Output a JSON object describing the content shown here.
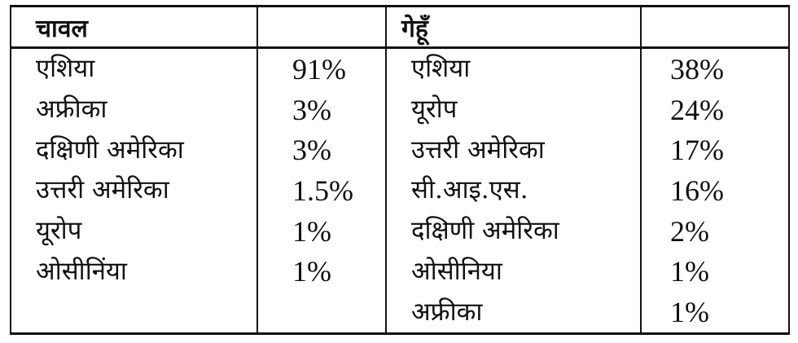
{
  "headers": [
    "चावल",
    "",
    "गेहूँ",
    ""
  ],
  "rows": [
    {
      "rice_region": "एशिया",
      "rice_value": "91%",
      "wheat_region": "एशिया",
      "wheat_value": "38%"
    },
    {
      "rice_region": "अफ्रीका",
      "rice_value": "3%",
      "wheat_region": "यूरोप",
      "wheat_value": "24%"
    },
    {
      "rice_region": "दक्षिणी अमेरिका",
      "rice_value": "3%",
      "wheat_region": "उत्तरी अमेरिका",
      "wheat_value": "17%"
    },
    {
      "rice_region": "उत्तरी अमेरिका",
      "rice_value": "1.5%",
      "wheat_region": "सी.आइ.एस.",
      "wheat_value": "16%"
    },
    {
      "rice_region": "यूरोप",
      "rice_value": "1%",
      "wheat_region": "दक्षिणी अमेरिका",
      "wheat_value": "2%"
    },
    {
      "rice_region": "ओसीनिंया",
      "rice_value": "1%",
      "wheat_region": "ओसीनिया",
      "wheat_value": "1%"
    },
    {
      "rice_region": "",
      "rice_value": "",
      "wheat_region": "अफ्रीका",
      "wheat_value": "1%"
    }
  ]
}
